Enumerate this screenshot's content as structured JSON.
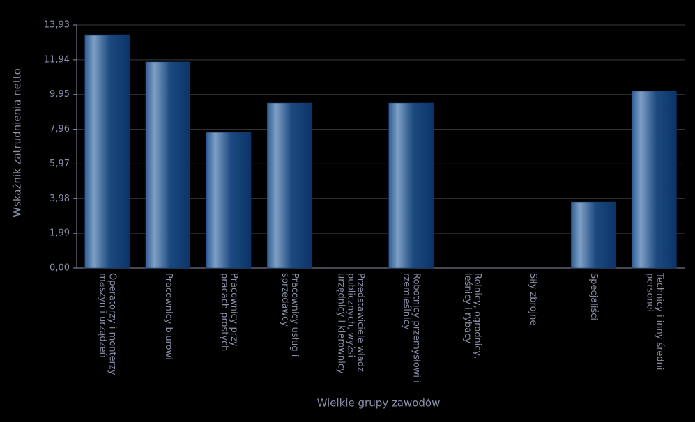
{
  "chart_data": {
    "type": "bar",
    "x_label": "Wielkie grupy zawodów",
    "y_label": "Wskaźnik zatrudnienia netto",
    "categories": [
      "Operatorzy i monterzy maszyn i urządzeń",
      "Pracownicy biurowi",
      "Pracownicy przy pracach prostych",
      "Pracownicy usług i sprzedawcy",
      "Przedstawiciele władz publicznych, wyżsi urzędnicy i kierownicy",
      "Robotnicy przemysłowi i rzemieślnicy",
      "Rolnicy, ogrodnicy, leśnicy i rybacy",
      "Siły zbrojne",
      "Specjaliści",
      "Technicy i inny średni personel"
    ],
    "values": [
      13.37,
      11.82,
      7.78,
      9.46,
      0,
      9.46,
      0,
      0,
      3.79,
      10.14
    ],
    "color": "#0f3a6e",
    "ylim": [
      0,
      13.93
    ],
    "yticks": [
      {
        "value": 0,
        "label": "0,00"
      },
      {
        "value": 1.99,
        "label": "1,99"
      },
      {
        "value": 3.98,
        "label": "3,98"
      },
      {
        "value": 5.97,
        "label": "5,97"
      },
      {
        "value": 7.96,
        "label": "7,96"
      },
      {
        "value": 9.95,
        "label": "9,95"
      },
      {
        "value": 11.94,
        "label": "11,94"
      },
      {
        "value": 13.93,
        "label": "13,93"
      }
    ],
    "grid": true
  }
}
